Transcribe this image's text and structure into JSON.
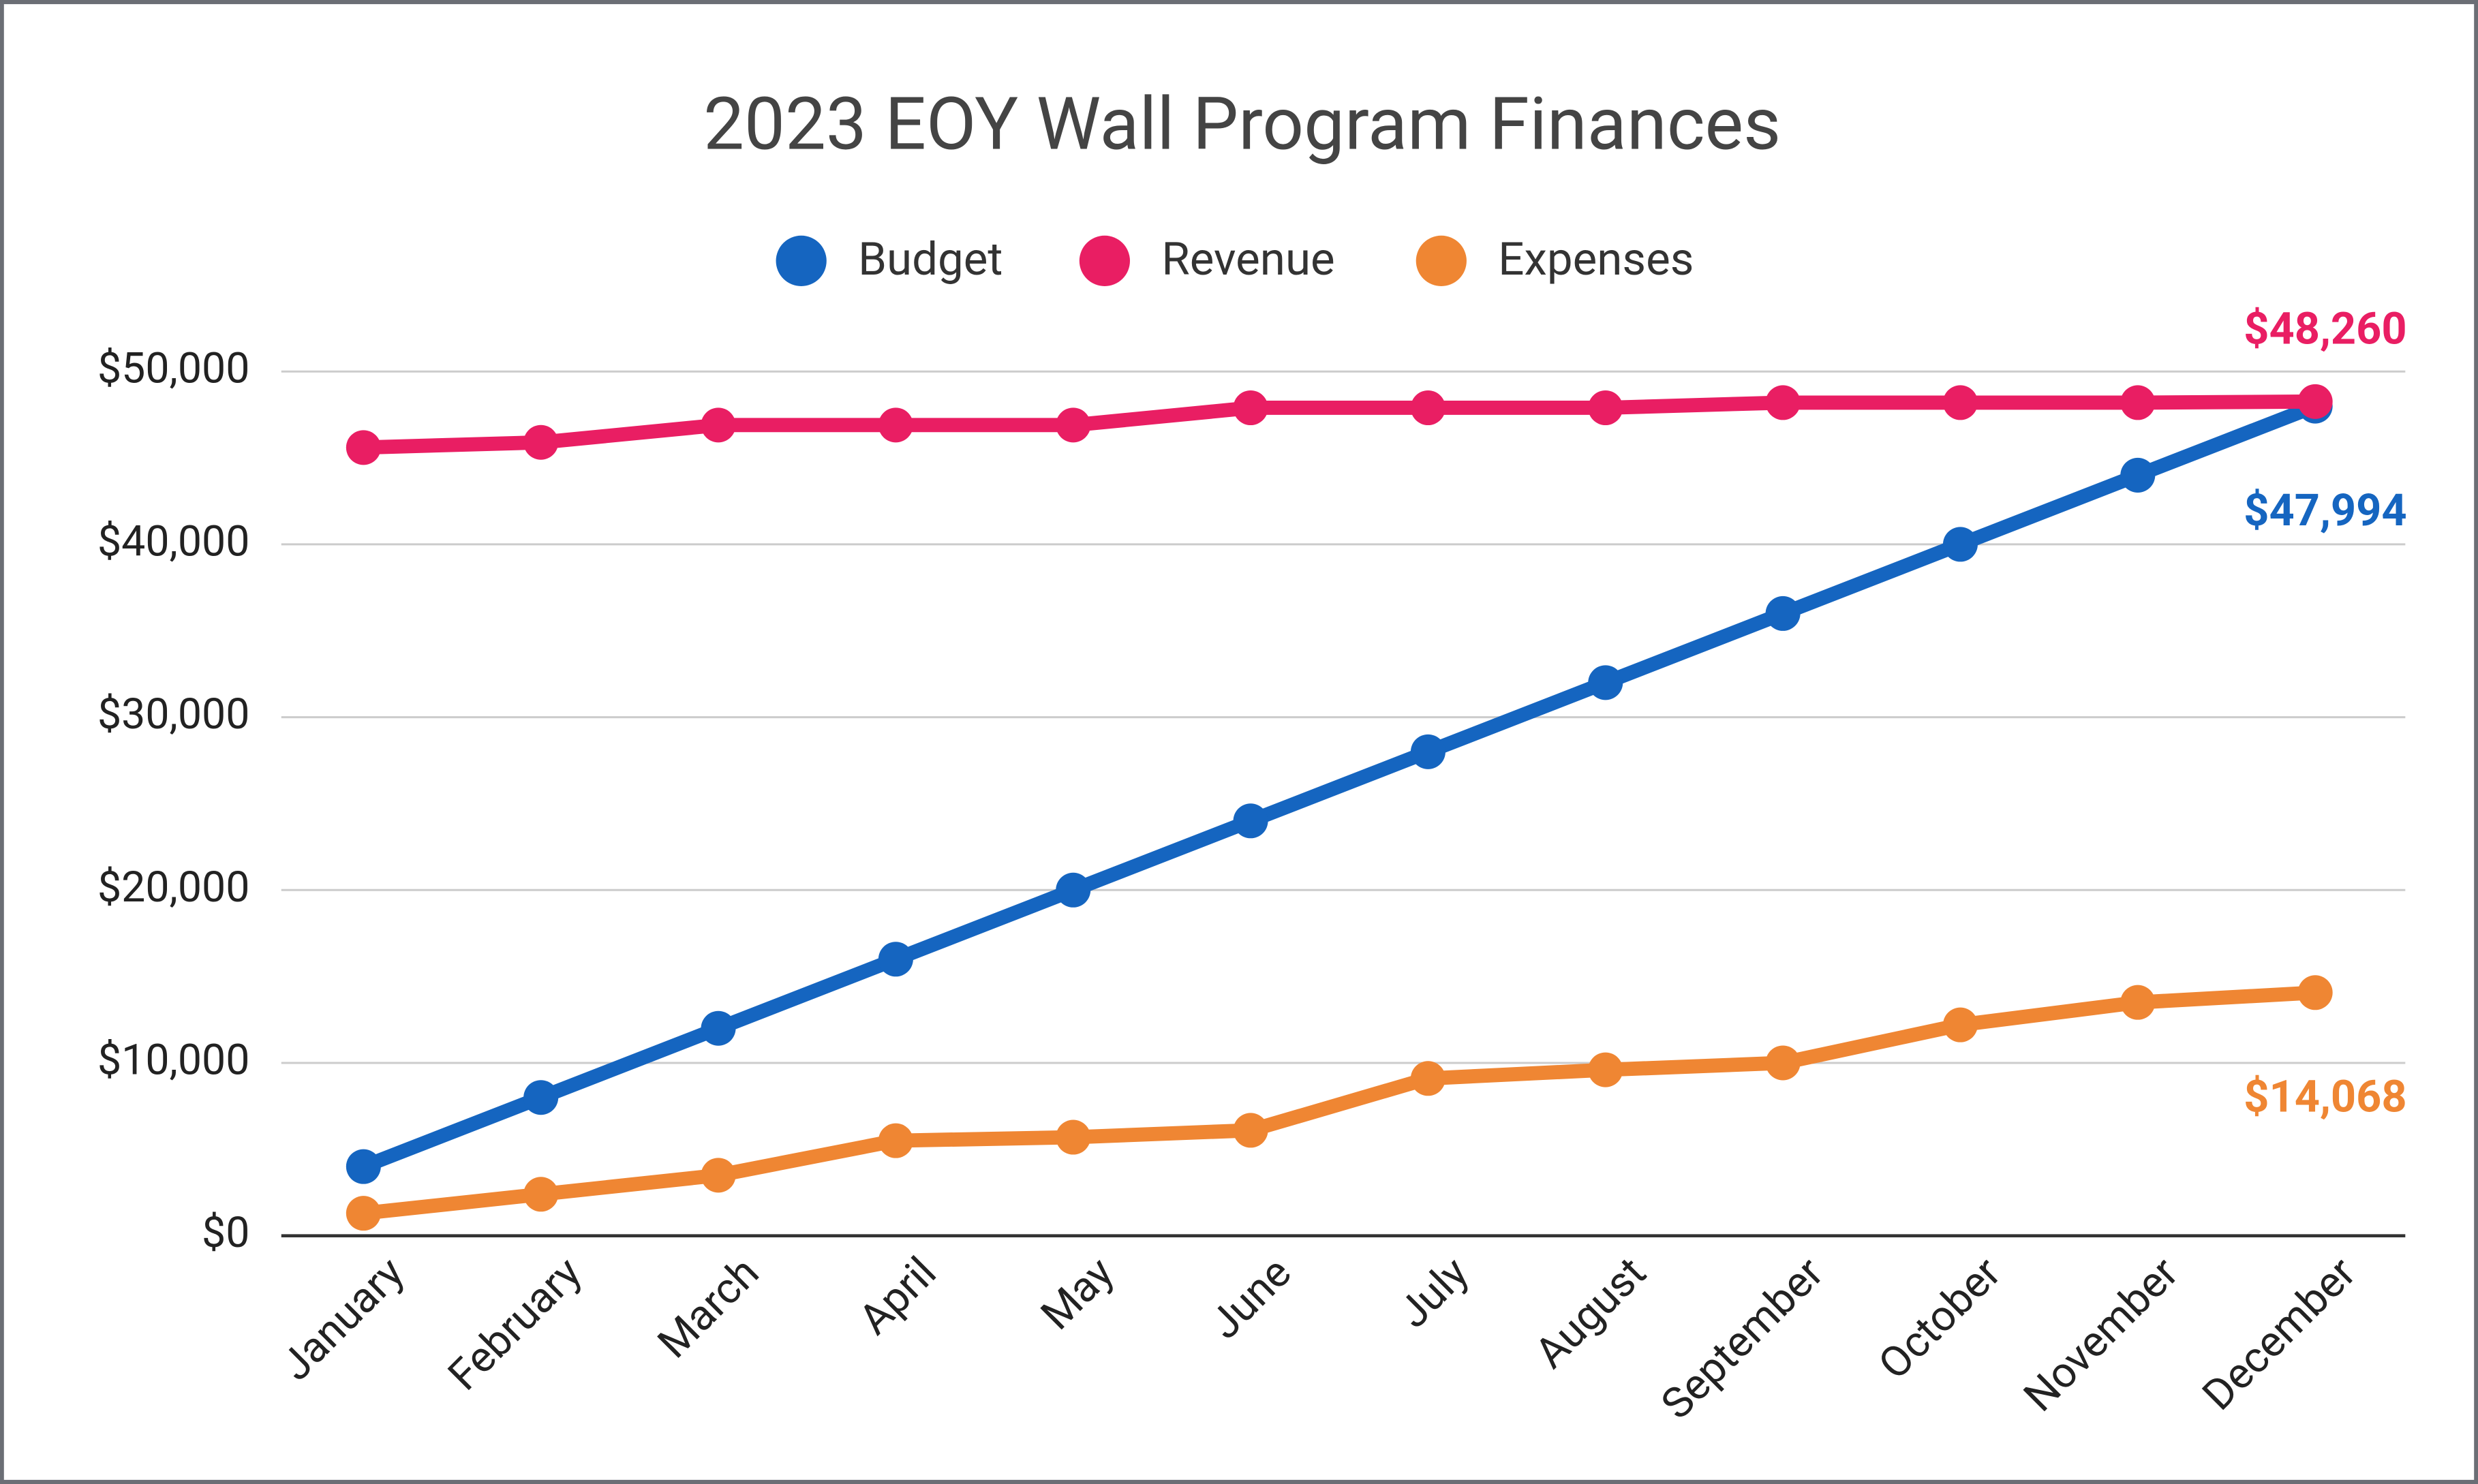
{
  "chart_data": {
    "type": "line",
    "title": "2023 EOY Wall Program Finances",
    "categories": [
      "January",
      "February",
      "March",
      "April",
      "May",
      "June",
      "July",
      "August",
      "September",
      "October",
      "November",
      "December"
    ],
    "series": [
      {
        "name": "Budget",
        "color": "#1565c0",
        "values": [
          4000,
          8000,
          12000,
          16000,
          20000,
          24000,
          28000,
          32000,
          36000,
          40000,
          44000,
          47994
        ],
        "value_labels": [
          null,
          null,
          null,
          null,
          null,
          null,
          null,
          null,
          null,
          null,
          null,
          "$47,994"
        ]
      },
      {
        "name": "Revenue",
        "color": "#e91e63",
        "values": [
          45600,
          45900,
          46900,
          46900,
          46900,
          47900,
          47900,
          47900,
          48200,
          48200,
          48200,
          48260
        ],
        "value_labels": [
          null,
          null,
          null,
          null,
          null,
          null,
          null,
          null,
          null,
          null,
          null,
          "$48,260"
        ]
      },
      {
        "name": "Expenses",
        "color": "#ef8633",
        "values": [
          1300,
          2400,
          3500,
          5500,
          5700,
          6100,
          9100,
          9600,
          10000,
          12200,
          13500,
          14068
        ],
        "value_labels": [
          null,
          null,
          null,
          null,
          null,
          null,
          null,
          null,
          null,
          null,
          null,
          "$14,068"
        ]
      }
    ],
    "ylim": [
      0,
      50000
    ],
    "yticks": [
      {
        "value": 0,
        "label": "$0"
      },
      {
        "value": 10000,
        "label": "$10,000"
      },
      {
        "value": 20000,
        "label": "$20,000"
      },
      {
        "value": 30000,
        "label": "$30,000"
      },
      {
        "value": 40000,
        "label": "$40,000"
      },
      {
        "value": 50000,
        "label": "$50,000"
      }
    ],
    "grid": true,
    "legend": "top"
  }
}
